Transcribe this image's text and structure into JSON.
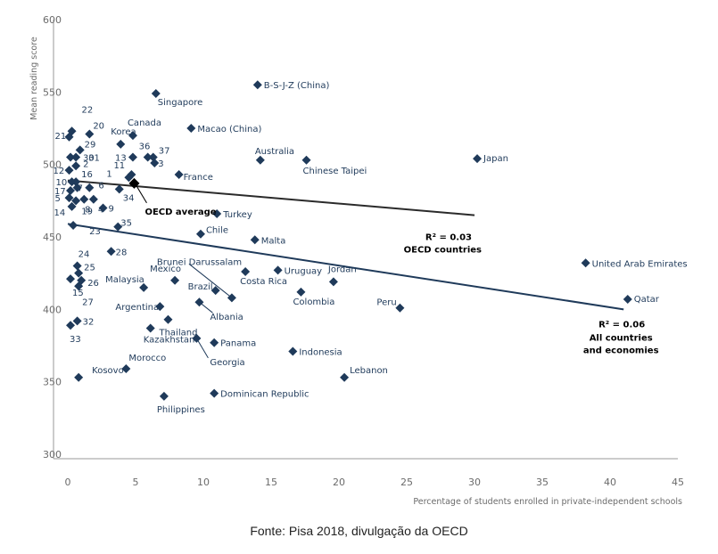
{
  "caption": "Fonte: Pisa 2018, divulgação da OECD",
  "chart_data": {
    "type": "scatter",
    "xlabel": "Percentage of students enrolled in private-independent schools",
    "ylabel": "Mean reading score",
    "xlim": [
      0,
      45
    ],
    "ylim": [
      300,
      600
    ],
    "xticks": [
      0,
      5,
      10,
      15,
      20,
      25,
      30,
      35,
      40,
      45
    ],
    "yticks": [
      300,
      350,
      400,
      450,
      500,
      550,
      600
    ],
    "grid": "none",
    "marker_color": "#1f3a5a",
    "points": [
      {
        "label": "B-S-J-Z (China)",
        "x": 14,
        "y": 555
      },
      {
        "label": "Singapore",
        "x": 6.5,
        "y": 549
      },
      {
        "label": "Macao (China)",
        "x": 9.1,
        "y": 525
      },
      {
        "label": "Korea",
        "x": 3.9,
        "y": 514
      },
      {
        "label": "Canada",
        "x": 4.8,
        "y": 520
      },
      {
        "label": "Australia",
        "x": 14.2,
        "y": 503
      },
      {
        "label": "Chinese Taipei",
        "x": 17.6,
        "y": 503
      },
      {
        "label": "Japan",
        "x": 30.2,
        "y": 504
      },
      {
        "label": "France",
        "x": 8.2,
        "y": 493
      },
      {
        "label": "Turkey",
        "x": 11,
        "y": 466
      },
      {
        "label": "Chile",
        "x": 9.8,
        "y": 452
      },
      {
        "label": "Malta",
        "x": 13.8,
        "y": 448
      },
      {
        "label": "United Arab Emirates",
        "x": 38.2,
        "y": 432
      },
      {
        "label": "Brunei Darussalam",
        "x": 12.1,
        "y": 408
      },
      {
        "label": "Uruguay",
        "x": 15.5,
        "y": 427
      },
      {
        "label": "Costa Rica",
        "x": 13.1,
        "y": 426
      },
      {
        "label": "Jordan",
        "x": 19.6,
        "y": 419
      },
      {
        "label": "Mexico",
        "x": 7.9,
        "y": 420
      },
      {
        "label": "Brazil",
        "x": 10.9,
        "y": 413
      },
      {
        "label": "Malaysia",
        "x": 5.6,
        "y": 415
      },
      {
        "label": "Colombia",
        "x": 17.2,
        "y": 412
      },
      {
        "label": "Peru",
        "x": 24.5,
        "y": 401
      },
      {
        "label": "Qatar",
        "x": 41.3,
        "y": 407
      },
      {
        "label": "Albania",
        "x": 9.7,
        "y": 405
      },
      {
        "label": "Argentina",
        "x": 6.8,
        "y": 402
      },
      {
        "label": "Thailand",
        "x": 7.4,
        "y": 393
      },
      {
        "label": "Kazakhstan",
        "x": 6.1,
        "y": 387
      },
      {
        "label": "Panama",
        "x": 10.8,
        "y": 377
      },
      {
        "label": "Georgia",
        "x": 9.5,
        "y": 380
      },
      {
        "label": "Indonesia",
        "x": 16.6,
        "y": 371
      },
      {
        "label": "Morocco",
        "x": 4.3,
        "y": 359
      },
      {
        "label": "Kosovo",
        "x": 0.8,
        "y": 353
      },
      {
        "label": "Lebanon",
        "x": 20.4,
        "y": 353
      },
      {
        "label": "Dominican Republic",
        "x": 10.8,
        "y": 342
      },
      {
        "label": "Philippines",
        "x": 7.1,
        "y": 340
      },
      {
        "label": "22",
        "x": 0.3,
        "y": 523
      },
      {
        "label": "21",
        "x": 0.1,
        "y": 519
      },
      {
        "label": "20",
        "x": 1.6,
        "y": 521
      },
      {
        "label": "29",
        "x": 0.9,
        "y": 510
      },
      {
        "label": "30",
        "x": 0.2,
        "y": 505
      },
      {
        "label": "31",
        "x": 0.6,
        "y": 505
      },
      {
        "label": "36",
        "x": 5.9,
        "y": 505
      },
      {
        "label": "37",
        "x": 6.3,
        "y": 505
      },
      {
        "label": "13",
        "x": 4.8,
        "y": 505
      },
      {
        "label": "3",
        "x": 6.4,
        "y": 501
      },
      {
        "label": "12",
        "x": 0.1,
        "y": 496
      },
      {
        "label": "2",
        "x": 0.6,
        "y": 499
      },
      {
        "label": "11",
        "x": 4.7,
        "y": 493
      },
      {
        "label": "1",
        "x": 4.5,
        "y": 491
      },
      {
        "label": "16",
        "x": 0.6,
        "y": 488
      },
      {
        "label": "10",
        "x": 0.3,
        "y": 488
      },
      {
        "label": "6",
        "x": 1.6,
        "y": 484
      },
      {
        "label": "7",
        "x": 0.7,
        "y": 484
      },
      {
        "label": "34",
        "x": 3.8,
        "y": 483
      },
      {
        "label": "17",
        "x": 0.2,
        "y": 482
      },
      {
        "label": "5",
        "x": 0.1,
        "y": 477
      },
      {
        "label": "8",
        "x": 0.6,
        "y": 475
      },
      {
        "label": "9",
        "x": 2.6,
        "y": 470
      },
      {
        "label": "4",
        "x": 1.9,
        "y": 476
      },
      {
        "label": "14",
        "x": 0.3,
        "y": 471
      },
      {
        "label": "19",
        "x": 1.2,
        "y": 476
      },
      {
        "label": "23",
        "x": 0.4,
        "y": 458
      },
      {
        "label": "35",
        "x": 3.7,
        "y": 457
      },
      {
        "label": "28",
        "x": 3.2,
        "y": 440
      },
      {
        "label": "24",
        "x": 0.7,
        "y": 430
      },
      {
        "label": "25",
        "x": 0.8,
        "y": 425
      },
      {
        "label": "26",
        "x": 1,
        "y": 420
      },
      {
        "label": "15",
        "x": 0.2,
        "y": 421
      },
      {
        "label": "27",
        "x": 0.8,
        "y": 416
      },
      {
        "label": "32",
        "x": 0.7,
        "y": 392
      },
      {
        "label": "33",
        "x": 0.2,
        "y": 389
      }
    ],
    "oecd_average": {
      "label": "OECD average",
      "x": 4.9,
      "y": 487
    },
    "trendlines": [
      {
        "name": "OECD countries",
        "r2_label": "R² = 0.03",
        "x1": 0,
        "y1": 489,
        "x2": 30,
        "y2": 465
      },
      {
        "name": "All countries and economies",
        "r2_label": "R² = 0.06",
        "x1": 0,
        "y1": 459,
        "x2": 41,
        "y2": 400
      }
    ]
  }
}
